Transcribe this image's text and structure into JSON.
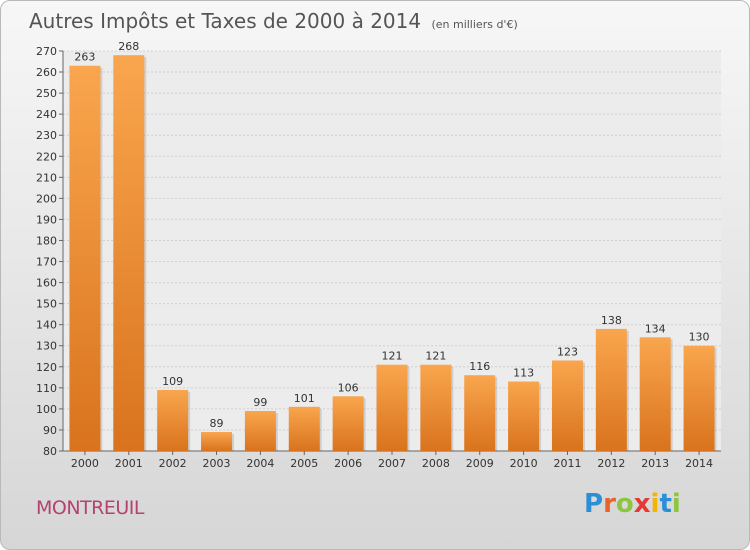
{
  "chart_data": {
    "type": "bar",
    "title": "Autres Impôts et Taxes de 2000 à 2014",
    "subtitle": "(en milliers d'€)",
    "categories": [
      "2000",
      "2001",
      "2002",
      "2003",
      "2004",
      "2005",
      "2006",
      "2007",
      "2008",
      "2009",
      "2010",
      "2011",
      "2012",
      "2013",
      "2014"
    ],
    "values": [
      263,
      268,
      109,
      89,
      99,
      101,
      106,
      121,
      121,
      116,
      113,
      123,
      138,
      134,
      130
    ],
    "ylim": [
      80,
      270
    ],
    "yticks": [
      80,
      90,
      100,
      110,
      120,
      130,
      140,
      150,
      160,
      170,
      180,
      190,
      200,
      210,
      220,
      230,
      240,
      250,
      260,
      270
    ],
    "grid": true,
    "bar_color": "#f0902e"
  },
  "footer": {
    "city": "MONTREUIL",
    "logo_letters": [
      "P",
      "r",
      "o",
      "x",
      "i",
      "t",
      "i"
    ],
    "logo_colors": [
      "#2a8fd6",
      "#e8642c",
      "#8cc63f",
      "#e53935",
      "#f4b400",
      "#2a8fd6",
      "#8cc63f"
    ]
  }
}
